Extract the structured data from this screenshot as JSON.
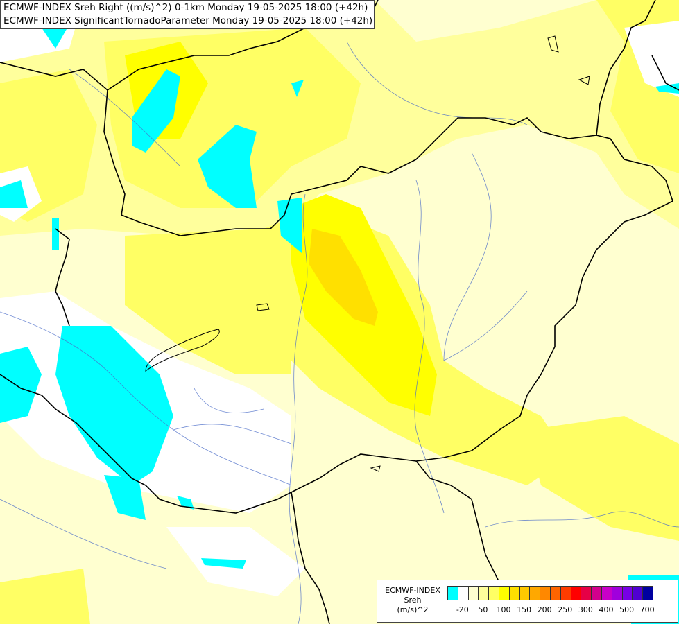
{
  "header": {
    "line1": "ECMWF-INDEX Sreh Right ((m/s)^2) 0-1km Monday 19-05-2025 18:00 (+42h)",
    "line2": "ECMWF-INDEX SignificantTornadoParameter Monday 19-05-2025 18:00 (+42h)"
  },
  "legend": {
    "source": "ECMWF-INDEX",
    "parameter": "Sreh",
    "unit": "(m/s)^2",
    "colors": [
      "#00ffff",
      "#ffffff",
      "#ffffd0",
      "#ffff9c",
      "#ffff64",
      "#ffff00",
      "#ffe000",
      "#ffc800",
      "#ffa800",
      "#ff8800",
      "#ff6400",
      "#ff3c00",
      "#ff0000",
      "#e60046",
      "#d2008c",
      "#c800c8",
      "#a000dc",
      "#7800e6",
      "#5000d2",
      "#0000a0"
    ],
    "ticks": [
      {
        "label": "-20",
        "index": 1
      },
      {
        "label": "50",
        "index": 3
      },
      {
        "label": "100",
        "index": 5
      },
      {
        "label": "150",
        "index": 7
      },
      {
        "label": "200",
        "index": 9
      },
      {
        "label": "250",
        "index": 11
      },
      {
        "label": "300",
        "index": 13
      },
      {
        "label": "400",
        "index": 15
      },
      {
        "label": "500",
        "index": 17
      },
      {
        "label": "700",
        "index": 19
      }
    ]
  }
}
